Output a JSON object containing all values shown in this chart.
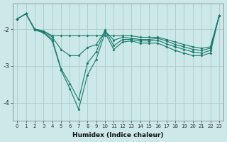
{
  "xlabel": "Humidex (Indice chaleur)",
  "bg_color": "#cce8e8",
  "grid_color": "#aacccc",
  "line_color": "#1a7a6e",
  "xlim": [
    -0.5,
    23.5
  ],
  "ylim": [
    -4.5,
    -1.3
  ],
  "yticks": [
    -4,
    -3,
    -2
  ],
  "xticks": [
    0,
    1,
    2,
    3,
    4,
    5,
    6,
    7,
    8,
    9,
    10,
    11,
    12,
    13,
    14,
    15,
    16,
    17,
    18,
    19,
    20,
    21,
    22,
    23
  ],
  "line1_x": [
    0,
    1,
    2,
    3,
    4,
    5,
    6,
    7,
    8,
    9,
    10,
    11,
    12,
    13,
    14,
    15,
    16,
    17,
    18,
    19,
    20,
    21,
    22,
    23
  ],
  "line1_y": [
    -1.72,
    -1.58,
    -2.0,
    -2.05,
    -2.18,
    -2.18,
    -2.18,
    -2.18,
    -2.18,
    -2.18,
    -2.18,
    -2.18,
    -2.18,
    -2.18,
    -2.22,
    -2.22,
    -2.22,
    -2.28,
    -2.35,
    -2.42,
    -2.48,
    -2.52,
    -2.48,
    -1.63
  ],
  "line2_x": [
    0,
    1,
    2,
    3,
    4,
    5,
    6,
    7,
    8,
    9,
    10,
    11,
    12,
    13,
    14,
    15,
    16,
    17,
    18,
    19,
    20,
    21,
    22,
    23
  ],
  "line2_y": [
    -1.72,
    -1.58,
    -2.0,
    -2.05,
    -2.22,
    -2.55,
    -2.72,
    -2.72,
    -2.5,
    -2.42,
    -2.05,
    -2.3,
    -2.22,
    -2.25,
    -2.28,
    -2.28,
    -2.25,
    -2.32,
    -2.42,
    -2.48,
    -2.55,
    -2.58,
    -2.52,
    -1.63
  ],
  "line3_x": [
    0,
    1,
    2,
    3,
    4,
    5,
    6,
    7,
    8,
    9,
    10,
    11,
    12,
    13,
    14,
    15,
    16,
    17,
    18,
    19,
    20,
    21,
    22,
    23
  ],
  "line3_y": [
    -1.72,
    -1.58,
    -2.02,
    -2.08,
    -2.28,
    -3.08,
    -3.48,
    -3.92,
    -2.92,
    -2.62,
    -2.02,
    -2.45,
    -2.28,
    -2.28,
    -2.32,
    -2.32,
    -2.3,
    -2.4,
    -2.48,
    -2.55,
    -2.62,
    -2.65,
    -2.58,
    -1.63
  ],
  "line4_x": [
    0,
    1,
    2,
    3,
    4,
    5,
    6,
    7,
    8,
    9,
    10,
    11,
    12,
    13,
    14,
    15,
    16,
    17,
    18,
    19,
    20,
    21,
    22,
    23
  ],
  "line4_y": [
    -1.72,
    -1.58,
    -2.02,
    -2.1,
    -2.32,
    -3.12,
    -3.62,
    -4.18,
    -3.25,
    -2.82,
    -2.1,
    -2.55,
    -2.35,
    -2.32,
    -2.38,
    -2.38,
    -2.38,
    -2.48,
    -2.58,
    -2.65,
    -2.72,
    -2.72,
    -2.65,
    -1.63
  ]
}
